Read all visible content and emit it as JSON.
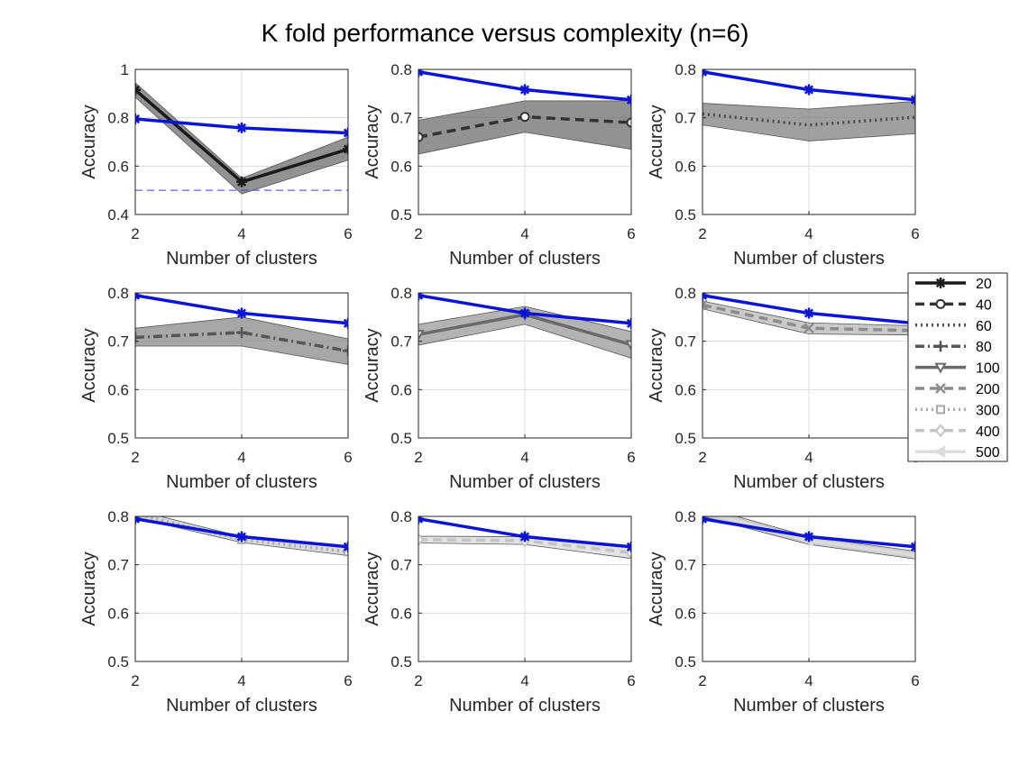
{
  "chart_data": {
    "type": "line",
    "title": "K fold performance versus complexity (n=6)",
    "x": [
      2,
      4,
      6
    ],
    "xlabel": "Number of clusters",
    "ylabel": "Accuracy",
    "reference": {
      "name": "reference",
      "color": "#0a14d8",
      "values": [
        0.795,
        0.758,
        0.737
      ]
    },
    "legend": {
      "placement": "right",
      "entries": [
        "20",
        "40",
        "60",
        "80",
        "100",
        "200",
        "300",
        "400",
        "500"
      ]
    },
    "subplots": [
      {
        "ylim": [
          0.4,
          1.0
        ],
        "yticks": [
          "0.4",
          "0.6",
          "0.8",
          "1"
        ],
        "ytick_values": [
          0.4,
          0.6,
          0.8,
          1.0
        ],
        "chance": 0.5,
        "series": {
          "name": "20",
          "color": "#1a1a1a",
          "dash": "solid",
          "marker": "asterisk",
          "values": [
            0.915,
            0.535,
            0.67
          ],
          "lower": [
            0.885,
            0.485,
            0.625
          ],
          "upper": [
            0.945,
            0.55,
            0.72
          ],
          "band_color": "#6e6e6e"
        }
      },
      {
        "ylim": [
          0.5,
          0.8
        ],
        "yticks": [
          "0.5",
          "0.6",
          "0.7",
          "0.8"
        ],
        "ytick_values": [
          0.5,
          0.6,
          0.7,
          0.8
        ],
        "series": {
          "name": "40",
          "color": "#333333",
          "dash": "dashed",
          "marker": "circle",
          "values": [
            0.66,
            0.702,
            0.69
          ],
          "lower": [
            0.625,
            0.67,
            0.635
          ],
          "upper": [
            0.695,
            0.735,
            0.735
          ],
          "band_color": "#6e6e6e"
        }
      },
      {
        "ylim": [
          0.5,
          0.8
        ],
        "yticks": [
          "0.5",
          "0.6",
          "0.7",
          "0.8"
        ],
        "ytick_values": [
          0.5,
          0.6,
          0.7,
          0.8
        ],
        "series": {
          "name": "60",
          "color": "#4a4a4a",
          "dash": "dotted",
          "marker": "none",
          "values": [
            0.708,
            0.685,
            0.701
          ],
          "lower": [
            0.685,
            0.652,
            0.667
          ],
          "upper": [
            0.73,
            0.718,
            0.734
          ],
          "band_color": "#808080"
        }
      },
      {
        "ylim": [
          0.5,
          0.8
        ],
        "yticks": [
          "0.5",
          "0.6",
          "0.7",
          "0.8"
        ],
        "ytick_values": [
          0.5,
          0.6,
          0.7,
          0.8
        ],
        "series": {
          "name": "80",
          "color": "#555555",
          "dash": "dashdot",
          "marker": "plus",
          "values": [
            0.708,
            0.718,
            0.68
          ],
          "lower": [
            0.69,
            0.69,
            0.652
          ],
          "upper": [
            0.727,
            0.75,
            0.705
          ],
          "band_color": "#8a8a8a"
        }
      },
      {
        "ylim": [
          0.5,
          0.8
        ],
        "yticks": [
          "0.5",
          "0.6",
          "0.7",
          "0.8"
        ],
        "ytick_values": [
          0.5,
          0.6,
          0.7,
          0.8
        ],
        "series": {
          "name": "100",
          "color": "#6a6a6a",
          "dash": "solid",
          "marker": "triangle-down",
          "values": [
            0.714,
            0.755,
            0.693
          ],
          "lower": [
            0.692,
            0.735,
            0.665
          ],
          "upper": [
            0.735,
            0.772,
            0.72
          ],
          "band_color": "#9a9a9a"
        }
      },
      {
        "ylim": [
          0.5,
          0.8
        ],
        "yticks": [
          "0.5",
          "0.6",
          "0.7",
          "0.8"
        ],
        "ytick_values": [
          0.5,
          0.6,
          0.7,
          0.8
        ],
        "series": {
          "name": "200",
          "color": "#8c8c8c",
          "dash": "dashed",
          "marker": "x",
          "values": [
            0.775,
            0.727,
            0.722
          ],
          "lower": [
            0.767,
            0.715,
            0.713
          ],
          "upper": [
            0.783,
            0.738,
            0.732
          ],
          "band_color": "#b8b8b8"
        }
      },
      {
        "ylim": [
          0.5,
          0.8
        ],
        "yticks": [
          "0.5",
          "0.6",
          "0.7",
          "0.8"
        ],
        "ytick_values": [
          0.5,
          0.6,
          0.7,
          0.8
        ],
        "series": {
          "name": "300",
          "color": "#a8a8a8",
          "dash": "dotted",
          "marker": "square",
          "values": [
            0.805,
            0.752,
            0.727
          ],
          "lower": [
            0.797,
            0.746,
            0.719
          ],
          "upper": [
            0.813,
            0.758,
            0.735
          ],
          "band_color": "#cfcfcf"
        }
      },
      {
        "ylim": [
          0.5,
          0.8
        ],
        "yticks": [
          "0.5",
          "0.6",
          "0.7",
          "0.8"
        ],
        "ytick_values": [
          0.5,
          0.6,
          0.7,
          0.8
        ],
        "series": {
          "name": "400",
          "color": "#c4c4c4",
          "dash": "dashed",
          "marker": "diamond",
          "values": [
            0.752,
            0.75,
            0.725
          ],
          "lower": [
            0.745,
            0.742,
            0.713
          ],
          "upper": [
            0.759,
            0.758,
            0.737
          ],
          "band_color": "#dadada"
        }
      },
      {
        "ylim": [
          0.5,
          0.8
        ],
        "yticks": [
          "0.5",
          "0.6",
          "0.7",
          "0.8"
        ],
        "ytick_values": [
          0.5,
          0.6,
          0.7,
          0.8
        ],
        "chance": 0.5,
        "series": {
          "name": "500",
          "color": "#dcdcdc",
          "dash": "solid",
          "marker": "triangle-left",
          "values": [
            0.81,
            0.75,
            0.72
          ],
          "lower": [
            0.8,
            0.742,
            0.712
          ],
          "upper": [
            0.82,
            0.758,
            0.728
          ],
          "band_color": "#bdbdbd"
        }
      }
    ]
  }
}
